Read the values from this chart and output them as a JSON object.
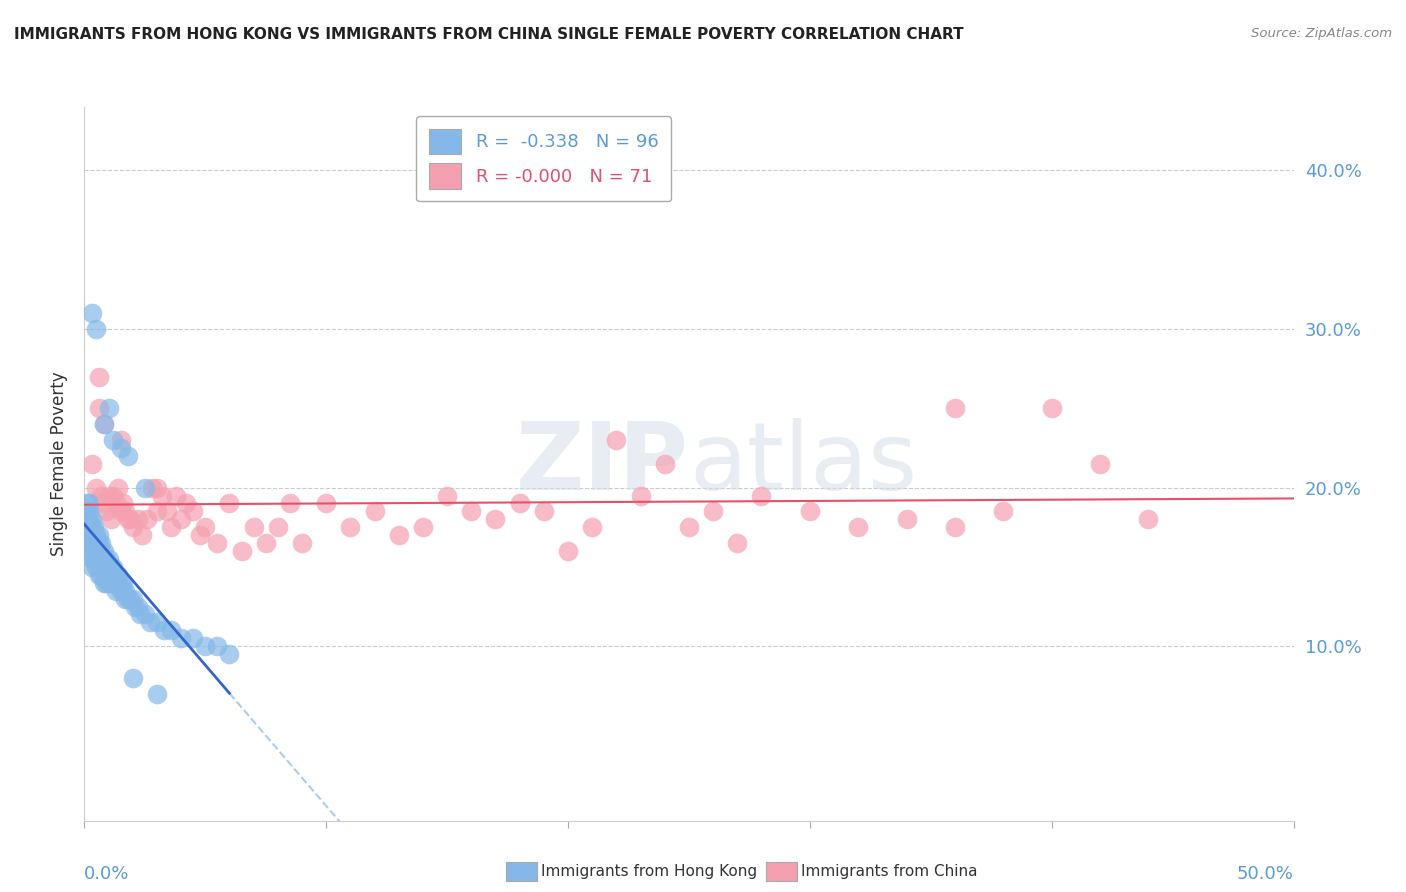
{
  "title": "IMMIGRANTS FROM HONG KONG VS IMMIGRANTS FROM CHINA SINGLE FEMALE POVERTY CORRELATION CHART",
  "source": "Source: ZipAtlas.com",
  "ylabel": "Single Female Poverty",
  "ytick_vals": [
    0.1,
    0.2,
    0.3,
    0.4
  ],
  "ytick_labels": [
    "10.0%",
    "20.0%",
    "30.0%",
    "40.0%"
  ],
  "xlim": [
    0.0,
    0.5
  ],
  "ylim": [
    -0.01,
    0.44
  ],
  "hk_color": "#85b8e8",
  "china_color": "#f4a0b0",
  "hk_line_color": "#3366cc",
  "hk_dash_color": "#aaccee",
  "china_line_color": "#e8506a",
  "hk_R": -0.338,
  "hk_N": 96,
  "china_R": -0.0,
  "china_N": 71,
  "watermark_zip": "ZIP",
  "watermark_atlas": "atlas",
  "legend_label_hk": "Immigrants from Hong Kong",
  "legend_label_china": "Immigrants from China",
  "hk_x": [
    0.001,
    0.001,
    0.001,
    0.001,
    0.001,
    0.002,
    0.002,
    0.002,
    0.002,
    0.002,
    0.002,
    0.002,
    0.003,
    0.003,
    0.003,
    0.003,
    0.003,
    0.003,
    0.003,
    0.004,
    0.004,
    0.004,
    0.004,
    0.004,
    0.005,
    0.005,
    0.005,
    0.005,
    0.005,
    0.006,
    0.006,
    0.006,
    0.006,
    0.006,
    0.006,
    0.007,
    0.007,
    0.007,
    0.007,
    0.007,
    0.008,
    0.008,
    0.008,
    0.008,
    0.008,
    0.009,
    0.009,
    0.009,
    0.009,
    0.01,
    0.01,
    0.01,
    0.01,
    0.011,
    0.011,
    0.011,
    0.012,
    0.012,
    0.012,
    0.013,
    0.013,
    0.013,
    0.014,
    0.014,
    0.015,
    0.015,
    0.016,
    0.016,
    0.017,
    0.017,
    0.018,
    0.019,
    0.02,
    0.021,
    0.022,
    0.023,
    0.025,
    0.027,
    0.03,
    0.033,
    0.036,
    0.04,
    0.045,
    0.05,
    0.055,
    0.06,
    0.003,
    0.005,
    0.008,
    0.01,
    0.012,
    0.015,
    0.018,
    0.02,
    0.025,
    0.03
  ],
  "hk_y": [
    0.175,
    0.18,
    0.185,
    0.19,
    0.165,
    0.17,
    0.175,
    0.18,
    0.185,
    0.19,
    0.165,
    0.16,
    0.17,
    0.175,
    0.18,
    0.165,
    0.16,
    0.155,
    0.15,
    0.165,
    0.17,
    0.175,
    0.16,
    0.155,
    0.165,
    0.17,
    0.16,
    0.155,
    0.15,
    0.165,
    0.17,
    0.16,
    0.155,
    0.15,
    0.145,
    0.16,
    0.165,
    0.155,
    0.15,
    0.145,
    0.155,
    0.16,
    0.15,
    0.145,
    0.14,
    0.155,
    0.15,
    0.145,
    0.14,
    0.15,
    0.155,
    0.145,
    0.14,
    0.15,
    0.145,
    0.14,
    0.15,
    0.145,
    0.14,
    0.145,
    0.14,
    0.135,
    0.145,
    0.14,
    0.14,
    0.135,
    0.14,
    0.135,
    0.135,
    0.13,
    0.13,
    0.13,
    0.13,
    0.125,
    0.125,
    0.12,
    0.12,
    0.115,
    0.115,
    0.11,
    0.11,
    0.105,
    0.105,
    0.1,
    0.1,
    0.095,
    0.31,
    0.3,
    0.24,
    0.25,
    0.23,
    0.225,
    0.22,
    0.08,
    0.2,
    0.07
  ],
  "china_x": [
    0.003,
    0.005,
    0.006,
    0.007,
    0.008,
    0.009,
    0.01,
    0.011,
    0.012,
    0.013,
    0.014,
    0.015,
    0.016,
    0.017,
    0.018,
    0.019,
    0.02,
    0.022,
    0.024,
    0.026,
    0.028,
    0.03,
    0.032,
    0.034,
    0.036,
    0.038,
    0.04,
    0.042,
    0.045,
    0.048,
    0.05,
    0.055,
    0.06,
    0.065,
    0.07,
    0.075,
    0.08,
    0.085,
    0.09,
    0.1,
    0.11,
    0.12,
    0.13,
    0.14,
    0.15,
    0.16,
    0.17,
    0.18,
    0.19,
    0.2,
    0.21,
    0.22,
    0.23,
    0.24,
    0.25,
    0.26,
    0.27,
    0.28,
    0.3,
    0.32,
    0.34,
    0.36,
    0.38,
    0.4,
    0.42,
    0.44,
    0.006,
    0.008,
    0.015,
    0.03,
    0.36
  ],
  "china_y": [
    0.215,
    0.2,
    0.27,
    0.195,
    0.19,
    0.185,
    0.195,
    0.18,
    0.195,
    0.19,
    0.2,
    0.185,
    0.19,
    0.185,
    0.18,
    0.18,
    0.175,
    0.18,
    0.17,
    0.18,
    0.2,
    0.185,
    0.195,
    0.185,
    0.175,
    0.195,
    0.18,
    0.19,
    0.185,
    0.17,
    0.175,
    0.165,
    0.19,
    0.16,
    0.175,
    0.165,
    0.175,
    0.19,
    0.165,
    0.19,
    0.175,
    0.185,
    0.17,
    0.175,
    0.195,
    0.185,
    0.18,
    0.19,
    0.185,
    0.16,
    0.175,
    0.23,
    0.195,
    0.215,
    0.175,
    0.185,
    0.165,
    0.195,
    0.185,
    0.175,
    0.18,
    0.175,
    0.185,
    0.25,
    0.215,
    0.18,
    0.25,
    0.24,
    0.23,
    0.2,
    0.25
  ]
}
